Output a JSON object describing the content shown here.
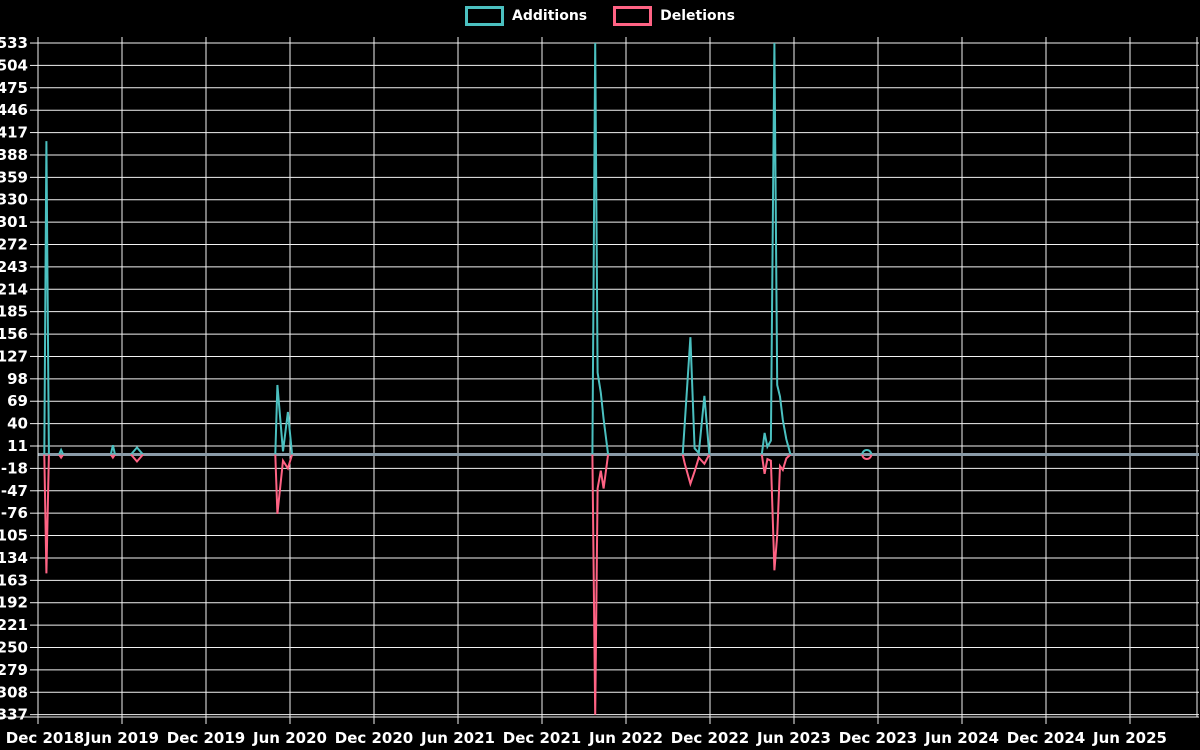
{
  "chart_data": {
    "type": "line",
    "title": "",
    "legend": [
      {
        "label": "Additions",
        "color": "#4bc0c0"
      },
      {
        "label": "Deletions",
        "color": "#ff6384"
      }
    ],
    "x_axis": {
      "unit": "months since Dec 2018",
      "tick_month_offsets": [
        0,
        6,
        12,
        18,
        24,
        30,
        36,
        42,
        48,
        54,
        60,
        66,
        72,
        78
      ],
      "tick_labels": [
        "Dec 2018",
        "Jun 2019",
        "Dec 2019",
        "Jun 2020",
        "Dec 2020",
        "Jun 2021",
        "Dec 2021",
        "Jun 2022",
        "Dec 2022",
        "Jun 2023",
        "Dec 2023",
        "Jun 2024",
        "Dec 2024",
        "Jun 2025"
      ]
    },
    "y_axis": {
      "min": -337,
      "max": 533,
      "step": 29,
      "ticks": [
        533,
        504,
        475,
        446,
        417,
        388,
        359,
        330,
        301,
        272,
        243,
        214,
        185,
        156,
        127,
        98,
        69,
        40,
        11,
        -18,
        -47,
        -76,
        -105,
        -134,
        -163,
        -192,
        -221,
        -250,
        -279,
        -308,
        -337
      ]
    },
    "series": [
      {
        "name": "Additions",
        "color": "#4bc0c0",
        "clusters": [
          [
            [
              0.45,
              0
            ],
            [
              0.6,
              406
            ],
            [
              0.78,
              0
            ]
          ],
          [
            [
              1.5,
              0
            ],
            [
              1.65,
              6
            ],
            [
              1.8,
              0
            ]
          ],
          [
            [
              5.2,
              0
            ],
            [
              5.35,
              12
            ],
            [
              5.5,
              0
            ]
          ],
          [
            [
              16.95,
              0
            ],
            [
              17.1,
              90
            ],
            [
              17.5,
              4
            ],
            [
              17.85,
              55
            ],
            [
              18.15,
              0
            ]
          ],
          [
            [
              39.6,
              0
            ],
            [
              39.8,
              533
            ],
            [
              39.97,
              106
            ],
            [
              40.2,
              80
            ],
            [
              40.4,
              46
            ],
            [
              40.72,
              0
            ]
          ],
          [
            [
              46.05,
              0
            ],
            [
              46.6,
              152
            ],
            [
              46.9,
              8
            ],
            [
              47.2,
              2
            ],
            [
              47.6,
              76
            ],
            [
              47.95,
              0
            ]
          ],
          [
            [
              51.7,
              0
            ],
            [
              51.9,
              28
            ],
            [
              52.1,
              10
            ],
            [
              52.35,
              18
            ],
            [
              52.6,
              533
            ],
            [
              52.8,
              90
            ],
            [
              53.0,
              75
            ],
            [
              53.2,
              45
            ],
            [
              53.45,
              20
            ],
            [
              53.75,
              0
            ]
          ]
        ]
      },
      {
        "name": "Deletions",
        "color": "#ff6384",
        "clusters": [
          [
            [
              0.45,
              0
            ],
            [
              0.6,
              -154
            ],
            [
              0.78,
              0
            ]
          ],
          [
            [
              1.5,
              0
            ],
            [
              1.65,
              -4
            ],
            [
              1.8,
              0
            ]
          ],
          [
            [
              5.2,
              0
            ],
            [
              5.35,
              -4
            ],
            [
              5.5,
              0
            ]
          ],
          [
            [
              16.95,
              0
            ],
            [
              17.1,
              -77
            ],
            [
              17.5,
              -8
            ],
            [
              17.85,
              -18
            ],
            [
              18.15,
              0
            ]
          ],
          [
            [
              39.6,
              0
            ],
            [
              39.8,
              -337
            ],
            [
              39.97,
              -44
            ],
            [
              40.2,
              -21
            ],
            [
              40.4,
              -44
            ],
            [
              40.72,
              0
            ]
          ],
          [
            [
              46.05,
              0
            ],
            [
              46.2,
              -12
            ],
            [
              46.6,
              -38
            ],
            [
              46.9,
              -22
            ],
            [
              47.2,
              -4
            ],
            [
              47.6,
              -12
            ],
            [
              47.95,
              0
            ]
          ],
          [
            [
              51.7,
              0
            ],
            [
              51.9,
              -25
            ],
            [
              52.1,
              -6
            ],
            [
              52.35,
              -8
            ],
            [
              52.6,
              -150
            ],
            [
              52.8,
              -105
            ],
            [
              53.0,
              -15
            ],
            [
              53.2,
              -20
            ],
            [
              53.45,
              -5
            ],
            [
              53.75,
              0
            ]
          ]
        ]
      }
    ],
    "isolated_points": [
      {
        "month_offset": 7.07,
        "additions": 5,
        "deletions": -5,
        "shape": "diamond"
      },
      {
        "month_offset": 59.2,
        "additions": 3,
        "deletions": -3,
        "shape": "circle"
      }
    ],
    "colors": {
      "background": "#000000",
      "grid": "#f2f2f2",
      "zero_line": "#8a9ba8",
      "text": "#ffffff"
    }
  }
}
